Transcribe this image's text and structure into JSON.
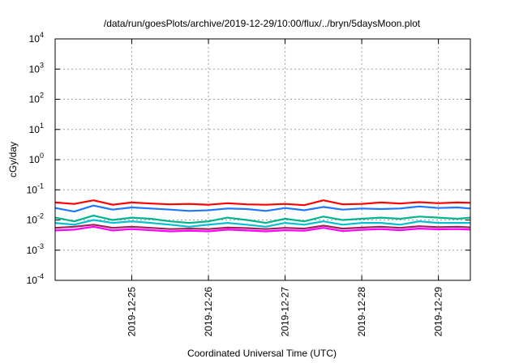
{
  "chart_data": {
    "type": "line",
    "title": "/data/run/goesPlots/archive/2019-12-29/10:00/flux/../bryn/5daysMoon.plot",
    "xlabel": "Coordinated Universal Time (UTC)",
    "ylabel": "cGy/day",
    "y_scale": "log",
    "ylim": [
      0.0001,
      10000
    ],
    "xlim": [
      "2019-12-24T00:00",
      "2019-12-29T10:00"
    ],
    "grid": true,
    "y_ticks": [
      {
        "value": 0.0001,
        "base": "10",
        "exp": "-4"
      },
      {
        "value": 0.001,
        "base": "10",
        "exp": "-3"
      },
      {
        "value": 0.01,
        "base": "10",
        "exp": "-2"
      },
      {
        "value": 0.1,
        "base": "10",
        "exp": "-1"
      },
      {
        "value": 1,
        "base": "10",
        "exp": "0"
      },
      {
        "value": 10,
        "base": "10",
        "exp": "1"
      },
      {
        "value": 100,
        "base": "10",
        "exp": "2"
      },
      {
        "value": 1000,
        "base": "10",
        "exp": "3"
      },
      {
        "value": 10000,
        "base": "10",
        "exp": "4"
      }
    ],
    "x_ticks": [
      {
        "value": "2019-12-25T00:00",
        "label": "2019-12-25"
      },
      {
        "value": "2019-12-26T00:00",
        "label": "2019-12-26"
      },
      {
        "value": "2019-12-27T00:00",
        "label": "2019-12-27"
      },
      {
        "value": "2019-12-28T00:00",
        "label": "2019-12-28"
      },
      {
        "value": "2019-12-29T00:00",
        "label": "2019-12-29"
      }
    ],
    "x": [
      "2019-12-24T00:00",
      "2019-12-24T06:00",
      "2019-12-24T12:00",
      "2019-12-24T18:00",
      "2019-12-25T00:00",
      "2019-12-25T06:00",
      "2019-12-25T12:00",
      "2019-12-25T18:00",
      "2019-12-26T00:00",
      "2019-12-26T06:00",
      "2019-12-26T12:00",
      "2019-12-26T18:00",
      "2019-12-27T00:00",
      "2019-12-27T06:00",
      "2019-12-27T12:00",
      "2019-12-27T18:00",
      "2019-12-28T00:00",
      "2019-12-28T06:00",
      "2019-12-28T12:00",
      "2019-12-28T18:00",
      "2019-12-29T00:00",
      "2019-12-29T06:00",
      "2019-12-29T10:00"
    ],
    "series": [
      {
        "color": "#ff0000",
        "values": [
          0.038,
          0.034,
          0.045,
          0.032,
          0.038,
          0.035,
          0.033,
          0.034,
          0.032,
          0.036,
          0.033,
          0.032,
          0.034,
          0.031,
          0.045,
          0.033,
          0.034,
          0.038,
          0.035,
          0.039,
          0.036,
          0.038,
          0.037
        ]
      },
      {
        "color": "#1f77ff",
        "values": [
          0.025,
          0.019,
          0.03,
          0.022,
          0.026,
          0.024,
          0.022,
          0.02,
          0.021,
          0.024,
          0.023,
          0.02,
          0.025,
          0.021,
          0.027,
          0.022,
          0.024,
          0.023,
          0.024,
          0.028,
          0.025,
          0.026,
          0.024
        ]
      },
      {
        "color": "#00b48c",
        "values": [
          0.012,
          0.009,
          0.014,
          0.01,
          0.012,
          0.011,
          0.009,
          0.008,
          0.009,
          0.012,
          0.01,
          0.008,
          0.011,
          0.009,
          0.013,
          0.01,
          0.011,
          0.012,
          0.011,
          0.013,
          0.012,
          0.011,
          0.012
        ]
      },
      {
        "color": "#00c0d0",
        "values": [
          0.008,
          0.007,
          0.01,
          0.008,
          0.009,
          0.008,
          0.007,
          0.006,
          0.007,
          0.008,
          0.007,
          0.006,
          0.008,
          0.007,
          0.009,
          0.007,
          0.008,
          0.008,
          0.007,
          0.009,
          0.008,
          0.008,
          0.008
        ]
      },
      {
        "color": "#a0205a",
        "values": [
          0.0055,
          0.006,
          0.007,
          0.0055,
          0.006,
          0.0055,
          0.005,
          0.0052,
          0.005,
          0.0056,
          0.0054,
          0.005,
          0.0055,
          0.0052,
          0.0065,
          0.0052,
          0.0056,
          0.006,
          0.0055,
          0.0062,
          0.0058,
          0.006,
          0.0057
        ]
      },
      {
        "color": "#ff00ff",
        "values": [
          0.0045,
          0.0048,
          0.006,
          0.0045,
          0.005,
          0.0046,
          0.0042,
          0.0044,
          0.0042,
          0.0048,
          0.0045,
          0.0042,
          0.0046,
          0.0044,
          0.0055,
          0.0043,
          0.0047,
          0.005,
          0.0046,
          0.0052,
          0.0049,
          0.005,
          0.0048
        ]
      }
    ]
  }
}
